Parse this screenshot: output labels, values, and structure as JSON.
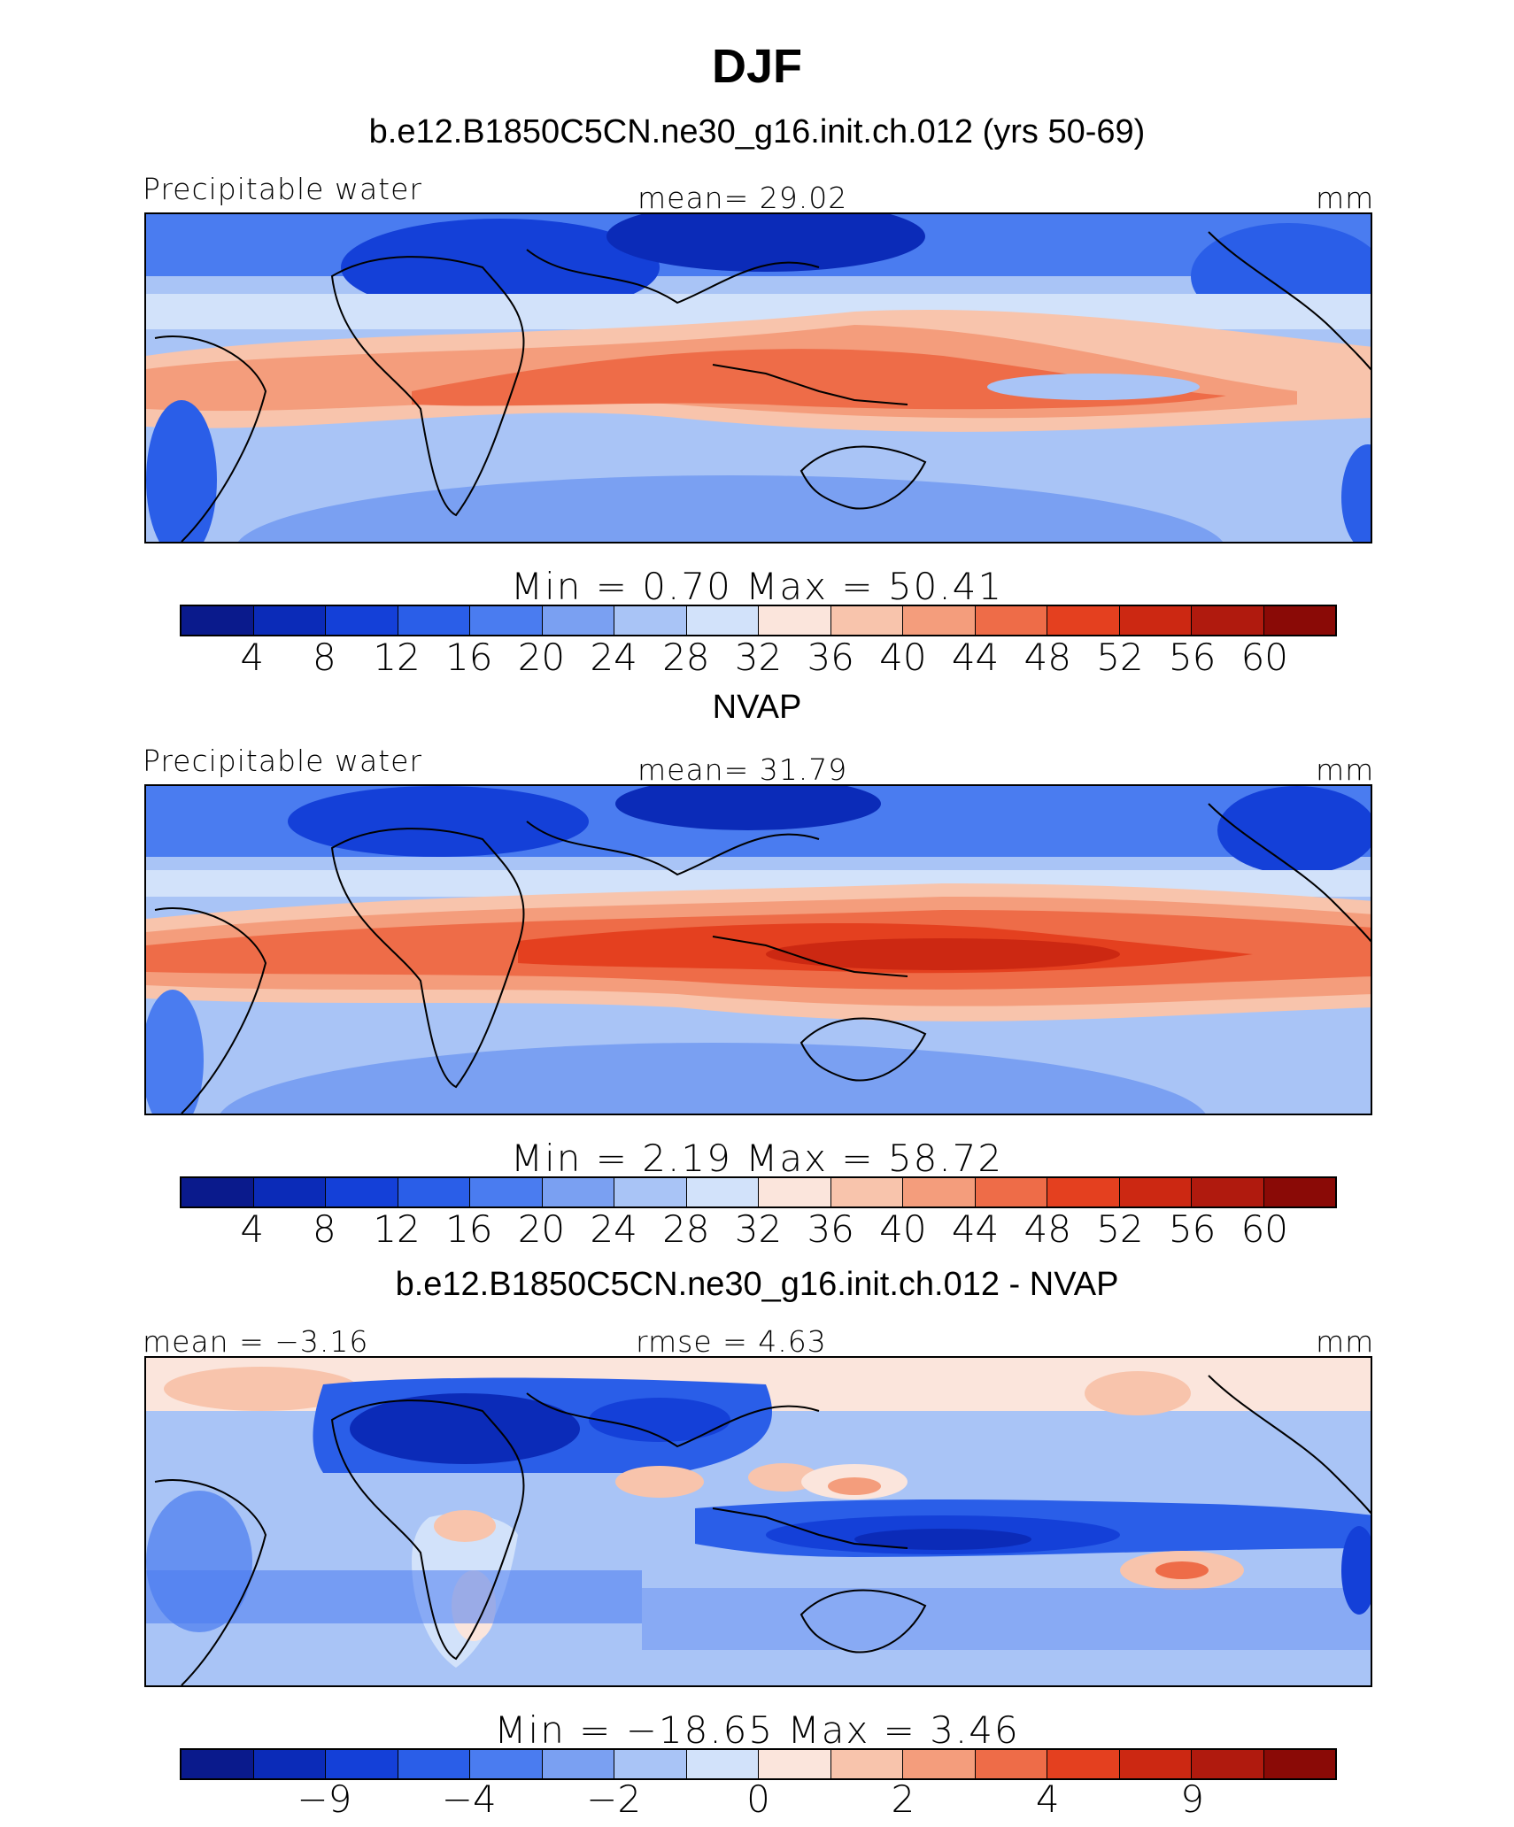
{
  "figure": {
    "season": "DJF",
    "palette": [
      "#0a1a8c",
      "#0b2bb8",
      "#1440d8",
      "#2a5ee8",
      "#4a7cf0",
      "#7aa0f2",
      "#a9c4f6",
      "#d2e2fa",
      "#fbe5dc",
      "#f8c4ac",
      "#f49d7c",
      "#ee6c48",
      "#e4401f",
      "#cc2812",
      "#b01a0e",
      "#8a0a06"
    ]
  },
  "panels": [
    {
      "title": "b.e12.B1850C5CN.ne30_g16.init.ch.012 (yrs 50-69)",
      "left_label": "Precipitable water",
      "center_label": "mean=  29.02",
      "right_label": "mm",
      "minmax": "Min  =     0.70  Max  =    50.41",
      "ticks": [
        "4",
        "8",
        "12",
        "16",
        "20",
        "24",
        "28",
        "32",
        "36",
        "40",
        "44",
        "48",
        "52",
        "56",
        "60"
      ]
    },
    {
      "title": "NVAP",
      "left_label": "Precipitable water",
      "center_label": "mean=  31.79",
      "right_label": "mm",
      "minmax": "Min  =     2.19  Max  =    58.72",
      "ticks": [
        "4",
        "8",
        "12",
        "16",
        "20",
        "24",
        "28",
        "32",
        "36",
        "40",
        "44",
        "48",
        "52",
        "56",
        "60"
      ]
    },
    {
      "title": "b.e12.B1850C5CN.ne30_g16.init.ch.012 - NVAP",
      "left_label": "mean =  −3.16",
      "center_label": "rmse =    4.63",
      "right_label": "mm",
      "minmax": "Min  =  −18.65  Max  =    3.46",
      "ticks": [
        "−9",
        "−4",
        "−2",
        "0",
        "2",
        "4",
        "9"
      ]
    }
  ]
}
